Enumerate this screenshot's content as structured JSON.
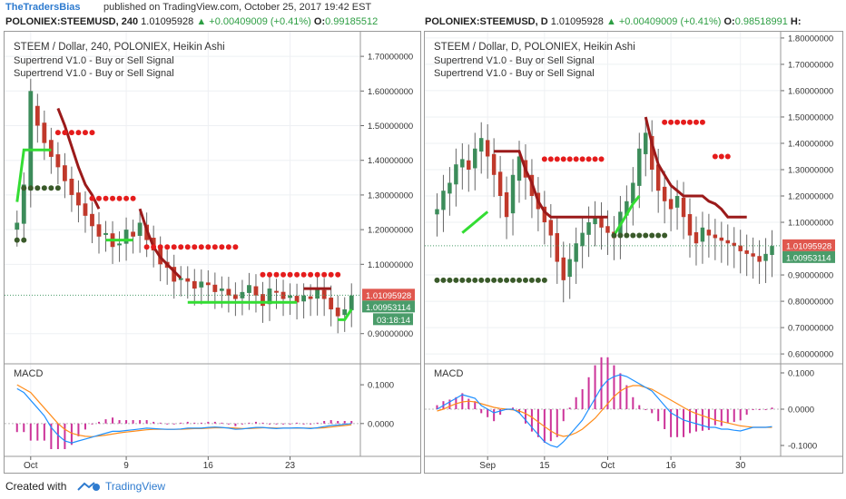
{
  "header": {
    "brand": "TheTradersBias",
    "published": "published on TradingView.com, October 25, 2017 19:42 EST"
  },
  "left_header": {
    "symbol": "POLONIEX:STEEMUSD, 240",
    "price": "1.01095928",
    "change": "▲ +0.00409009 (+0.41%)",
    "o_label": "O:",
    "o_value": "0.99185512"
  },
  "right_header": {
    "symbol": "POLONIEX:STEEMUSD, D",
    "price": "1.01095928",
    "change": "▲ +0.00409009 (+0.41%)",
    "o_label": "O:",
    "o_value": "0.98518991",
    "h_label": "H:"
  },
  "footer": {
    "created_with": "Created with",
    "brand": "TradingView"
  },
  "colors": {
    "candle_up": "#3c8c5a",
    "candle_down": "#c0392b",
    "supertrend_up": "#33dd33",
    "supertrend_down": "#9b1a1a",
    "dots_red": "#e51c1c",
    "dots_green": "#3a5a2a",
    "macd": "#1e90ff",
    "signal": "#ff8c1a",
    "hist": "#cc3399",
    "price_tag_red": "#e0574e",
    "price_tag_green": "#4a9c6a"
  },
  "chart_data": [
    {
      "type": "candlestick",
      "title": "STEEM / Dollar, 240, POLONIEX, Heikin Ashi",
      "indicators": [
        "Supertrend V1.0 - Buy or Sell Signal",
        "Supertrend V1.0 - Buy or Sell Signal"
      ],
      "y_ticks": [
        "1.70000000",
        "1.60000000",
        "1.50000000",
        "1.40000000",
        "1.30000000",
        "1.20000000",
        "1.10000000",
        "0.90000000"
      ],
      "ylim": [
        0.86,
        1.75
      ],
      "x_ticks": [
        "Oct",
        "9",
        "16",
        "23"
      ],
      "price_labels": [
        "1.01095928",
        "1.00953114",
        "03:18:14"
      ],
      "series": [
        {
          "name": "Heikin Ashi",
          "values": [
            1.22,
            1.33,
            1.6,
            1.5,
            1.45,
            1.41,
            1.38,
            1.34,
            1.3,
            1.27,
            1.24,
            1.21,
            1.18,
            1.19,
            1.15,
            1.16,
            1.2,
            1.18,
            1.22,
            1.17,
            1.14,
            1.1,
            1.09,
            1.05,
            1.06,
            1.05,
            1.03,
            1.05,
            1.04,
            1.02,
            1.03,
            1.01,
            1.0,
            1.02,
            1.04,
            1.01,
            0.98,
            1.03,
            1.02,
            1.0,
            1.01,
            0.99,
            1.01,
            1.0,
            1.03,
            1.0,
            0.97,
            0.95,
            0.97,
            1.01
          ]
        },
        {
          "name": "Supertrend up",
          "values": [
            1.28,
            1.43,
            1.43,
            1.43,
            1.43,
            1.43,
            null,
            null,
            null,
            null,
            null,
            null,
            null,
            1.17,
            1.17,
            1.17,
            1.17,
            1.17,
            null,
            null,
            null,
            null,
            null,
            null,
            null,
            0.99,
            0.99,
            0.99,
            0.99,
            0.99,
            0.99,
            0.99,
            0.99,
            0.99,
            0.99,
            0.99,
            0.99,
            0.99,
            0.99,
            0.99,
            0.99,
            0.99,
            null,
            null,
            null,
            null,
            null,
            0.94,
            0.94,
            0.97
          ]
        },
        {
          "name": "Supertrend down",
          "values": [
            null,
            null,
            null,
            null,
            null,
            null,
            1.55,
            1.5,
            1.44,
            1.38,
            1.33,
            1.3,
            1.26,
            null,
            null,
            null,
            null,
            null,
            1.26,
            1.2,
            1.15,
            1.12,
            1.1,
            1.08,
            1.06,
            null,
            null,
            null,
            null,
            null,
            null,
            null,
            null,
            null,
            null,
            null,
            null,
            null,
            null,
            null,
            null,
            null,
            1.03,
            1.03,
            1.03,
            1.03,
            1.03,
            null,
            null,
            null
          ]
        },
        {
          "name": "MACD",
          "values": [
            0.09,
            0.08,
            0.06,
            0.04,
            0.02,
            -0.01,
            -0.03,
            -0.045,
            -0.05,
            -0.045,
            -0.04,
            -0.035,
            -0.03,
            -0.025,
            -0.02,
            -0.02,
            -0.018,
            -0.016,
            -0.014,
            -0.012,
            -0.013,
            -0.014,
            -0.015,
            -0.015,
            -0.014,
            -0.012,
            -0.012,
            -0.012,
            -0.01,
            -0.009,
            -0.01,
            -0.012,
            -0.015,
            -0.014,
            -0.012,
            -0.01,
            -0.01,
            -0.012,
            -0.013,
            -0.012,
            -0.012,
            -0.011,
            -0.012,
            -0.013,
            -0.011,
            -0.008,
            -0.005,
            -0.004,
            -0.002,
            0.0
          ]
        },
        {
          "name": "Signal",
          "values": [
            0.1,
            0.09,
            0.08,
            0.06,
            0.04,
            0.02,
            0.0,
            -0.015,
            -0.025,
            -0.03,
            -0.033,
            -0.034,
            -0.032,
            -0.03,
            -0.027,
            -0.024,
            -0.022,
            -0.02,
            -0.018,
            -0.016,
            -0.015,
            -0.015,
            -0.015,
            -0.015,
            -0.015,
            -0.014,
            -0.013,
            -0.013,
            -0.012,
            -0.011,
            -0.011,
            -0.011,
            -0.012,
            -0.013,
            -0.013,
            -0.012,
            -0.011,
            -0.011,
            -0.012,
            -0.012,
            -0.012,
            -0.012,
            -0.012,
            -0.012,
            -0.012,
            -0.011,
            -0.009,
            -0.007,
            -0.005,
            -0.003
          ]
        }
      ],
      "macd_label": "MACD",
      "macd_y_ticks": [
        "0.1000",
        "0.0000"
      ],
      "macd_ylim": [
        -0.08,
        0.14
      ]
    },
    {
      "type": "candlestick",
      "title": "STEEM / Dollar, D, POLONIEX, Heikin Ashi",
      "indicators": [
        "Supertrend V1.0 - Buy or Sell Signal",
        "Supertrend V1.0 - Buy or Sell Signal"
      ],
      "y_ticks": [
        "1.80000000",
        "1.70000000",
        "1.60000000",
        "1.50000000",
        "1.40000000",
        "1.30000000",
        "1.20000000",
        "1.10000000",
        "0.90000000",
        "0.80000000",
        "0.70000000",
        "0.60000000"
      ],
      "ylim": [
        0.59,
        1.81
      ],
      "x_ticks": [
        "Sep",
        "15",
        "Oct",
        "16",
        "30"
      ],
      "price_labels": [
        "1.01095928",
        "1.00953114"
      ],
      "series": [
        {
          "name": "Heikin Ashi",
          "values": [
            1.15,
            1.22,
            1.25,
            1.32,
            1.34,
            1.3,
            1.38,
            1.42,
            1.35,
            1.28,
            1.2,
            1.12,
            1.28,
            1.35,
            1.27,
            1.2,
            1.15,
            1.1,
            1.05,
            0.95,
            0.88,
            0.96,
            1.02,
            1.06,
            1.1,
            1.12,
            1.08,
            1.06,
            1.04,
            1.14,
            1.18,
            1.25,
            1.38,
            1.44,
            1.3,
            1.22,
            1.18,
            1.15,
            1.2,
            1.12,
            1.05,
            1.02,
            1.08,
            1.05,
            1.04,
            1.03,
            1.02,
            1.01,
            0.99,
            0.98,
            0.97,
            0.95,
            0.98,
            1.01
          ]
        },
        {
          "name": "Supertrend up",
          "values": [
            null,
            null,
            null,
            null,
            1.06,
            1.08,
            1.1,
            1.12,
            1.14,
            null,
            null,
            null,
            null,
            null,
            null,
            null,
            null,
            null,
            null,
            null,
            null,
            null,
            null,
            null,
            null,
            null,
            null,
            null,
            1.05,
            1.09,
            1.13,
            1.17,
            1.2,
            null,
            null,
            null,
            null,
            null,
            null,
            null,
            null,
            null,
            null,
            null,
            null,
            null,
            null,
            null,
            null,
            null,
            null,
            null,
            null,
            null
          ]
        },
        {
          "name": "Supertrend down",
          "values": [
            null,
            null,
            null,
            null,
            null,
            null,
            null,
            null,
            null,
            1.37,
            1.37,
            1.37,
            1.37,
            1.37,
            1.3,
            1.25,
            1.18,
            1.14,
            1.12,
            1.12,
            1.12,
            1.12,
            1.12,
            1.12,
            1.12,
            1.12,
            1.12,
            1.12,
            null,
            null,
            null,
            null,
            null,
            1.5,
            1.4,
            1.32,
            1.28,
            1.24,
            1.22,
            1.2,
            1.2,
            1.2,
            1.2,
            1.18,
            1.17,
            1.15,
            1.12,
            1.12,
            1.12,
            1.12,
            null,
            null,
            null,
            null
          ]
        },
        {
          "name": "MACD",
          "values": [
            0.0,
            0.01,
            0.02,
            0.03,
            0.04,
            0.035,
            0.03,
            0.01,
            0.0,
            -0.01,
            -0.005,
            0.0,
            0.0,
            -0.01,
            -0.03,
            -0.05,
            -0.07,
            -0.09,
            -0.1,
            -0.105,
            -0.09,
            -0.07,
            -0.05,
            -0.03,
            0.0,
            0.03,
            0.06,
            0.08,
            0.09,
            0.095,
            0.09,
            0.08,
            0.07,
            0.06,
            0.05,
            0.03,
            0.01,
            -0.01,
            -0.02,
            -0.03,
            -0.035,
            -0.04,
            -0.045,
            -0.05,
            -0.05,
            -0.055,
            -0.055,
            -0.058,
            -0.06,
            -0.055,
            -0.05,
            -0.05,
            -0.05,
            -0.048
          ]
        },
        {
          "name": "Signal",
          "values": [
            -0.005,
            0.0,
            0.008,
            0.015,
            0.02,
            0.022,
            0.02,
            0.015,
            0.01,
            0.005,
            0.002,
            0.0,
            -0.002,
            -0.005,
            -0.012,
            -0.022,
            -0.035,
            -0.048,
            -0.06,
            -0.07,
            -0.075,
            -0.072,
            -0.065,
            -0.055,
            -0.04,
            -0.025,
            -0.005,
            0.015,
            0.035,
            0.05,
            0.06,
            0.065,
            0.065,
            0.06,
            0.055,
            0.045,
            0.035,
            0.025,
            0.015,
            0.005,
            -0.005,
            -0.012,
            -0.018,
            -0.024,
            -0.03,
            -0.034,
            -0.038,
            -0.042,
            -0.046,
            -0.048,
            -0.05,
            -0.05,
            -0.05,
            -0.05
          ]
        }
      ],
      "macd_label": "MACD",
      "macd_y_ticks": [
        "0.1000",
        "0.0000",
        "-0.1000"
      ],
      "macd_ylim": [
        -0.125,
        0.11
      ]
    }
  ]
}
